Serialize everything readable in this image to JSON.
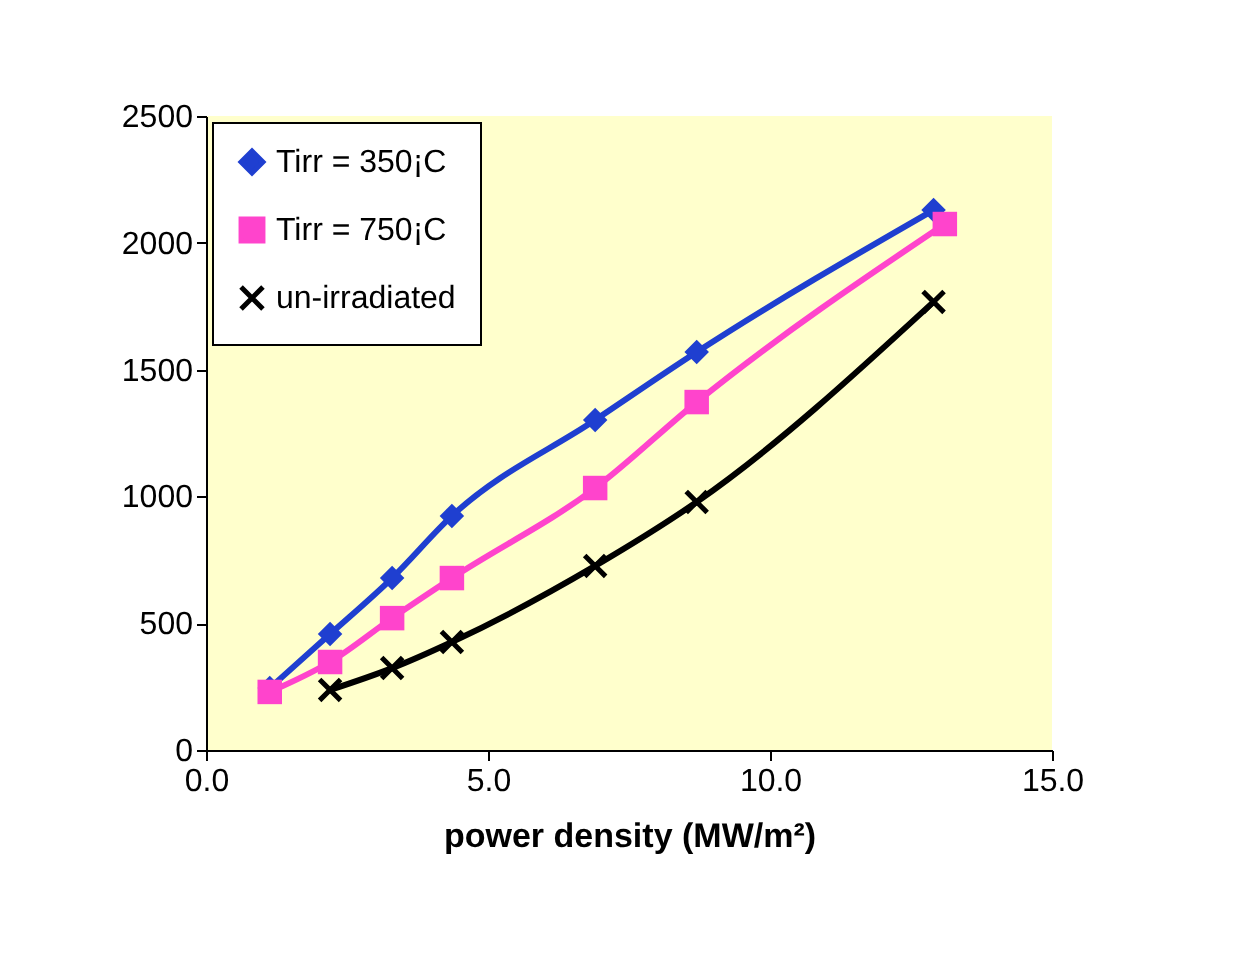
{
  "chart_data": {
    "type": "line",
    "xlabel": "power density (MW/m²)",
    "series": [
      {
        "name": "Tirr = 350¡C",
        "color": "#1f3fd0",
        "marker": "diamond",
        "x": [
          1.13,
          2.2,
          3.3,
          4.36,
          6.9,
          8.7,
          12.9
        ],
        "values": [
          244,
          457,
          678,
          923,
          1301,
          1569,
          2129
        ]
      },
      {
        "name": "Tirr = 750¡C",
        "color": "#ff44cc",
        "marker": "square",
        "x": [
          1.13,
          2.2,
          3.3,
          4.36,
          6.9,
          8.7,
          13.1
        ],
        "values": [
          229,
          347,
          520,
          678,
          1033,
          1372,
          2074
        ]
      },
      {
        "name": "un-irradiated",
        "color": "#000000",
        "marker": "cross",
        "x": [
          2.2,
          3.3,
          4.36,
          6.9,
          8.7,
          12.9
        ],
        "values": [
          237,
          323,
          426,
          726,
          978,
          1767
        ]
      }
    ],
    "xlim": [
      0,
      15
    ],
    "xticks": [
      {
        "value": 0,
        "label": "0.0"
      },
      {
        "value": 5,
        "label": "5.0"
      },
      {
        "value": 10,
        "label": "10.0"
      },
      {
        "value": 15,
        "label": "15.0"
      }
    ],
    "ylim": [
      0,
      2500
    ],
    "yticks": [
      0,
      500,
      1000,
      1500,
      2000,
      2500
    ],
    "legend": "top left",
    "grid": false
  }
}
